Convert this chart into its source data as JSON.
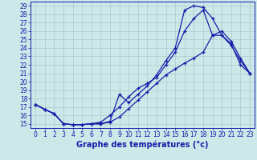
{
  "xlabel": "Graphe des températures (°c)",
  "bg_color": "#cce8e8",
  "grid_color": "#aacccc",
  "line_color": "#1a1aaa",
  "xlim": [
    -0.5,
    23.5
  ],
  "ylim": [
    14.5,
    29.5
  ],
  "xticks": [
    0,
    1,
    2,
    3,
    4,
    5,
    6,
    7,
    8,
    9,
    10,
    11,
    12,
    13,
    14,
    15,
    16,
    17,
    18,
    19,
    20,
    21,
    22,
    23
  ],
  "yticks": [
    15,
    16,
    17,
    18,
    19,
    20,
    21,
    22,
    23,
    24,
    25,
    26,
    27,
    28,
    29
  ],
  "line1_x": [
    0,
    1,
    2,
    3,
    4,
    5,
    6,
    7,
    8,
    9,
    10,
    11,
    12,
    13,
    14,
    15,
    16,
    17,
    18,
    19,
    20,
    21,
    22,
    23
  ],
  "line1_y": [
    17.3,
    16.7,
    16.2,
    15.0,
    14.9,
    14.9,
    15.0,
    15.0,
    15.3,
    18.5,
    17.5,
    18.5,
    19.5,
    20.8,
    22.5,
    24.0,
    28.5,
    29.0,
    28.8,
    27.5,
    25.5,
    24.5,
    22.0,
    21.0
  ],
  "line2_x": [
    0,
    1,
    2,
    3,
    4,
    5,
    6,
    7,
    8,
    9,
    10,
    11,
    12,
    13,
    14,
    15,
    16,
    17,
    18,
    19,
    20,
    21,
    22,
    23
  ],
  "line2_y": [
    17.3,
    16.7,
    16.2,
    15.0,
    14.9,
    14.9,
    15.0,
    15.2,
    16.0,
    17.0,
    18.2,
    19.2,
    19.8,
    20.5,
    22.0,
    23.5,
    26.0,
    27.5,
    28.5,
    25.5,
    25.5,
    24.3,
    22.5,
    21.0
  ],
  "line3_x": [
    0,
    1,
    2,
    3,
    4,
    5,
    6,
    7,
    8,
    9,
    10,
    11,
    12,
    13,
    14,
    15,
    16,
    17,
    18,
    19,
    20,
    21,
    22,
    23
  ],
  "line3_y": [
    17.3,
    16.7,
    16.2,
    15.0,
    14.9,
    14.9,
    15.0,
    15.0,
    15.2,
    15.8,
    16.8,
    17.8,
    18.8,
    19.8,
    20.8,
    21.5,
    22.2,
    22.8,
    23.5,
    25.5,
    26.0,
    24.8,
    22.8,
    21.0
  ],
  "tick_fontsize": 5.5,
  "xlabel_fontsize": 7,
  "lw": 0.9,
  "ms": 3.0
}
